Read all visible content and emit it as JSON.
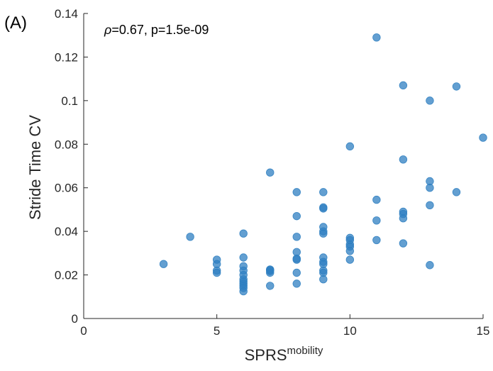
{
  "panel_label": "(A)",
  "annotation": {
    "rho_symbol": "ρ",
    "text": "=0.67, p=1.5e-09"
  },
  "chart_data": {
    "type": "scatter",
    "title": "",
    "xlabel": "SPRS",
    "xlabel_superscript": "mobility",
    "ylabel": "Stride Time CV",
    "xlim": [
      0,
      15
    ],
    "ylim": [
      0,
      0.14
    ],
    "xticks": [
      "0",
      "5",
      "10",
      "15"
    ],
    "yticks": [
      "0",
      "0.02",
      "0.04",
      "0.06",
      "0.08",
      "0.1",
      "0.12",
      "0.14"
    ],
    "grid": false,
    "marker_color": "#2f7fc1",
    "x": [
      3,
      4,
      5,
      5,
      5,
      5,
      6,
      6,
      6,
      6,
      6,
      6,
      6,
      6,
      6,
      6,
      6,
      7,
      7,
      7,
      7,
      7,
      7,
      8,
      8,
      8,
      8,
      8,
      8,
      8,
      8,
      9,
      9,
      9,
      9,
      9,
      9,
      9,
      9,
      9,
      9,
      9,
      9,
      10,
      10,
      10,
      10,
      10,
      10,
      10,
      11,
      11,
      11,
      11,
      12,
      12,
      12,
      12,
      12,
      12,
      13,
      13,
      13,
      13,
      13,
      14,
      14,
      15
    ],
    "y": [
      0.025,
      0.0375,
      0.027,
      0.025,
      0.022,
      0.021,
      0.039,
      0.028,
      0.024,
      0.022,
      0.02,
      0.018,
      0.017,
      0.016,
      0.015,
      0.014,
      0.0125,
      0.067,
      0.0225,
      0.0222,
      0.0218,
      0.021,
      0.015,
      0.058,
      0.047,
      0.0375,
      0.0305,
      0.0275,
      0.027,
      0.021,
      0.016,
      0.058,
      0.051,
      0.0505,
      0.042,
      0.04,
      0.039,
      0.028,
      0.026,
      0.025,
      0.022,
      0.021,
      0.018,
      0.079,
      0.037,
      0.036,
      0.034,
      0.033,
      0.031,
      0.027,
      0.129,
      0.0545,
      0.045,
      0.036,
      0.107,
      0.073,
      0.049,
      0.048,
      0.046,
      0.0345,
      0.1,
      0.063,
      0.06,
      0.052,
      0.0245,
      0.1065,
      0.058,
      0.083
    ]
  }
}
